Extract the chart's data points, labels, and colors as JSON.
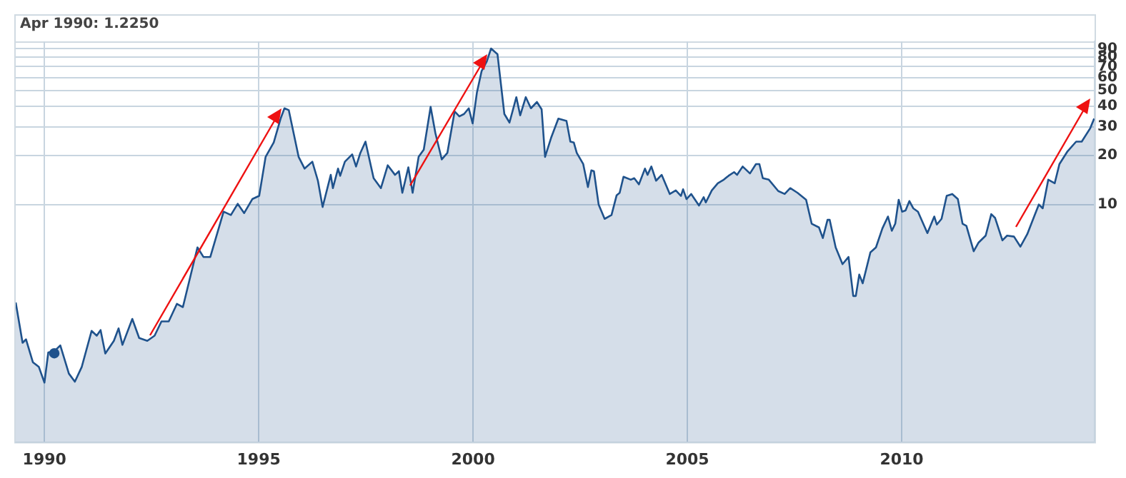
{
  "chart_data": {
    "type": "area",
    "log": "y",
    "grid": true,
    "marker": "none",
    "xlim": [
      1989.33,
      2014.5
    ],
    "xticks": [
      1990,
      1995,
      2000,
      2005,
      2010
    ],
    "ylim": [
      0.35,
      100
    ],
    "yticks": [
      10,
      20,
      30,
      40,
      50,
      60,
      70,
      80,
      90
    ],
    "annotations": [
      "Apr 1990: 1.2250"
    ],
    "series": [
      {
        "type": "scatter",
        "marker": "circle",
        "color": "#1f528c",
        "x": [
          1990.23
        ],
        "values": [
          1.225
        ]
      },
      {
        "color": "#1f528c",
        "x": [
          1989.33,
          1989.49,
          1989.57,
          1989.73,
          1989.87,
          1990.0,
          1990.09,
          1990.23,
          1990.37,
          1990.57,
          1990.71,
          1990.87,
          1991.1,
          1991.22,
          1991.31,
          1991.42,
          1991.62,
          1991.73,
          1991.82,
          1992.05,
          1992.21,
          1992.4,
          1992.57,
          1992.73,
          1992.9,
          1993.09,
          1993.23,
          1993.57,
          1993.71,
          1993.87,
          1994.18,
          1994.35,
          1994.51,
          1994.66,
          1994.85,
          1995.01,
          1995.16,
          1995.35,
          1995.51,
          1995.6,
          1995.7,
          1995.93,
          1996.07,
          1996.25,
          1996.38,
          1996.49,
          1996.68,
          1996.73,
          1996.85,
          1996.9,
          1997.01,
          1997.18,
          1997.27,
          1997.37,
          1997.49,
          1997.68,
          1997.85,
          1998.01,
          1998.18,
          1998.27,
          1998.35,
          1998.49,
          1998.59,
          1998.73,
          1998.85,
          1999.01,
          1999.12,
          1999.27,
          1999.4,
          1999.57,
          1999.68,
          1999.79,
          1999.9,
          1999.99,
          2000.09,
          2000.2,
          2000.32,
          2000.42,
          2000.57,
          2000.73,
          2000.85,
          2001.01,
          2001.1,
          2001.23,
          2001.35,
          2001.49,
          2001.6,
          2001.68,
          2001.82,
          2001.99,
          2002.18,
          2002.27,
          2002.35,
          2002.42,
          2002.57,
          2002.68,
          2002.76,
          2002.82,
          2002.93,
          2003.07,
          2003.23,
          2003.35,
          2003.42,
          2003.51,
          2003.68,
          2003.76,
          2003.87,
          2004.01,
          2004.07,
          2004.16,
          2004.27,
          2004.4,
          2004.59,
          2004.73,
          2004.85,
          2004.9,
          2004.98,
          2005.09,
          2005.27,
          2005.38,
          2005.43,
          2005.57,
          2005.71,
          2005.85,
          2005.96,
          2006.09,
          2006.16,
          2006.29,
          2006.46,
          2006.6,
          2006.68,
          2006.76,
          2006.9,
          2007.12,
          2007.27,
          2007.4,
          2007.57,
          2007.77,
          2007.9,
          2008.07,
          2008.16,
          2008.27,
          2008.32,
          2008.46,
          2008.62,
          2008.76,
          2008.87,
          2008.93,
          2009.01,
          2009.09,
          2009.27,
          2009.4,
          2009.55,
          2009.68,
          2009.77,
          2009.85,
          2009.93,
          2010.01,
          2010.09,
          2010.18,
          2010.27,
          2010.38,
          2010.6,
          2010.76,
          2010.82,
          2010.93,
          2011.05,
          2011.18,
          2011.31,
          2011.42,
          2011.51,
          2011.68,
          2011.79,
          2011.96,
          2012.09,
          2012.18,
          2012.35,
          2012.46,
          2012.62,
          2012.77,
          2012.93,
          2013.09,
          2013.2,
          2013.29,
          2013.42,
          2013.57,
          2013.68,
          2013.87,
          2014.07,
          2014.2,
          2014.4,
          2014.49
        ],
        "values": [
          2.51,
          1.42,
          1.49,
          1.08,
          1.01,
          0.81,
          1.24,
          1.26,
          1.37,
          0.92,
          0.82,
          1.01,
          1.68,
          1.57,
          1.7,
          1.22,
          1.46,
          1.74,
          1.38,
          1.99,
          1.52,
          1.46,
          1.57,
          1.92,
          1.92,
          2.46,
          2.35,
          5.46,
          4.77,
          4.77,
          9.04,
          8.62,
          10.1,
          8.86,
          10.8,
          11.3,
          19.6,
          24.0,
          33.6,
          38.9,
          37.9,
          19.6,
          16.6,
          18.3,
          14.0,
          9.66,
          15.2,
          12.6,
          16.6,
          15.0,
          18.3,
          20.3,
          17.1,
          20.7,
          24.3,
          14.5,
          12.6,
          17.4,
          15.2,
          16.0,
          11.8,
          16.9,
          11.8,
          19.6,
          21.7,
          39.7,
          27.5,
          18.9,
          20.7,
          37.2,
          34.7,
          35.9,
          38.9,
          31.4,
          48.6,
          65.8,
          75.4,
          90.4,
          83.4,
          35.9,
          31.8,
          45.5,
          35.2,
          45.5,
          38.9,
          42.5,
          38.3,
          19.6,
          25.6,
          33.6,
          32.5,
          24.3,
          24.0,
          20.7,
          17.7,
          12.8,
          16.2,
          16.0,
          10.0,
          8.17,
          8.62,
          11.4,
          11.8,
          14.8,
          14.2,
          14.5,
          13.3,
          16.6,
          15.2,
          17.1,
          14.0,
          15.2,
          11.6,
          12.2,
          11.3,
          12.4,
          10.8,
          11.6,
          9.86,
          11.1,
          10.3,
          12.2,
          13.5,
          14.2,
          15.0,
          15.8,
          15.2,
          17.1,
          15.5,
          17.7,
          17.7,
          14.5,
          14.2,
          12.1,
          11.6,
          12.6,
          11.8,
          10.7,
          7.63,
          7.24,
          6.23,
          8.06,
          8.06,
          5.46,
          4.31,
          4.77,
          2.75,
          2.75,
          3.72,
          3.29,
          5.09,
          5.46,
          7.14,
          8.44,
          6.9,
          7.63,
          10.7,
          9.04,
          9.2,
          10.5,
          9.48,
          9.04,
          6.68,
          8.44,
          7.54,
          8.17,
          11.3,
          11.6,
          10.8,
          7.63,
          7.39,
          5.17,
          5.83,
          6.45,
          8.73,
          8.27,
          6.03,
          6.45,
          6.36,
          5.52,
          6.58,
          8.44,
          10.0,
          9.48,
          14.2,
          13.5,
          17.7,
          21.2,
          24.3,
          24.3,
          29.4,
          33.6
        ]
      }
    ]
  }
}
